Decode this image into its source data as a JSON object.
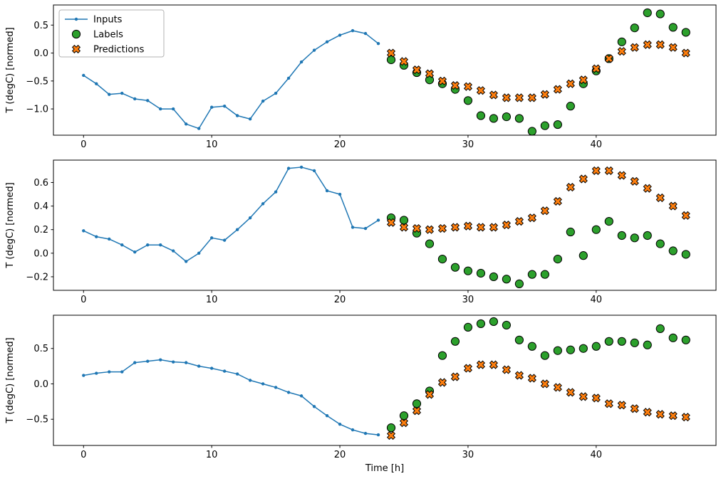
{
  "figure": {
    "xlabel": "Time [h]",
    "legend": {
      "items": [
        {
          "label": "Inputs",
          "marker": "line-dot",
          "color": "#1f77b4"
        },
        {
          "label": "Labels",
          "marker": "circle",
          "color": "#2ca02c"
        },
        {
          "label": "Predictions",
          "marker": "x",
          "color": "#ff7f0e"
        }
      ],
      "position": "upper-left-subplot-1"
    },
    "colors": {
      "inputs": "#1f77b4",
      "labels": "#2ca02c",
      "predictions": "#ff7f0e",
      "marker_edge": "#000000",
      "legend_border": "#b3b3b3",
      "background": "#ffffff"
    }
  },
  "chart_data": [
    {
      "type": "line+scatter",
      "title": "",
      "xlabel": "",
      "ylabel": "T (degC) [normed]",
      "xlim": [
        -2.35,
        49.35
      ],
      "ylim": [
        -1.47,
        0.86
      ],
      "xticks": [
        0,
        10,
        20,
        30,
        40
      ],
      "yticks": [
        0.5,
        0.0,
        -0.5,
        -1.0
      ],
      "grid": false,
      "series": [
        {
          "name": "Inputs",
          "marker": "line-dot",
          "x": [
            0,
            1,
            2,
            3,
            4,
            5,
            6,
            7,
            8,
            9,
            10,
            11,
            12,
            13,
            14,
            15,
            16,
            17,
            18,
            19,
            20,
            21,
            22,
            23
          ],
          "y": [
            -0.4,
            -0.55,
            -0.74,
            -0.72,
            -0.82,
            -0.85,
            -1.0,
            -1.0,
            -1.27,
            -1.35,
            -0.97,
            -0.95,
            -1.12,
            -1.18,
            -0.86,
            -0.72,
            -0.45,
            -0.16,
            0.05,
            0.2,
            0.32,
            0.4,
            0.35,
            0.17
          ]
        },
        {
          "name": "Labels",
          "marker": "circle",
          "x": [
            24,
            25,
            26,
            27,
            28,
            29,
            30,
            31,
            32,
            33,
            34,
            35,
            36,
            37,
            38,
            39,
            40,
            41,
            42,
            43,
            44,
            45,
            46,
            47
          ],
          "y": [
            -0.12,
            -0.22,
            -0.35,
            -0.48,
            -0.55,
            -0.65,
            -0.85,
            -1.12,
            -1.17,
            -1.14,
            -1.17,
            -1.4,
            -1.3,
            -1.28,
            -0.95,
            -0.55,
            -0.32,
            -0.1,
            0.2,
            0.45,
            0.72,
            0.7,
            0.46,
            0.37
          ]
        },
        {
          "name": "Predictions",
          "marker": "x",
          "x": [
            24,
            25,
            26,
            27,
            28,
            29,
            30,
            31,
            32,
            33,
            34,
            35,
            36,
            37,
            38,
            39,
            40,
            41,
            42,
            43,
            44,
            45,
            46,
            47
          ],
          "y": [
            0.0,
            -0.15,
            -0.3,
            -0.37,
            -0.5,
            -0.58,
            -0.6,
            -0.67,
            -0.75,
            -0.8,
            -0.8,
            -0.8,
            -0.74,
            -0.65,
            -0.55,
            -0.48,
            -0.28,
            -0.1,
            0.03,
            0.1,
            0.15,
            0.15,
            0.1,
            0.0
          ]
        }
      ]
    },
    {
      "type": "line+scatter",
      "title": "",
      "xlabel": "",
      "ylabel": "T (degC) [normed]",
      "xlim": [
        -2.35,
        49.35
      ],
      "ylim": [
        -0.315,
        0.79
      ],
      "xticks": [
        0,
        10,
        20,
        30,
        40
      ],
      "yticks": [
        0.6,
        0.4,
        0.2,
        0.0,
        -0.2
      ],
      "grid": false,
      "series": [
        {
          "name": "Inputs",
          "marker": "line-dot",
          "x": [
            0,
            1,
            2,
            3,
            4,
            5,
            6,
            7,
            8,
            9,
            10,
            11,
            12,
            13,
            14,
            15,
            16,
            17,
            18,
            19,
            20,
            21,
            22,
            23
          ],
          "y": [
            0.19,
            0.14,
            0.12,
            0.07,
            0.01,
            0.07,
            0.07,
            0.02,
            -0.07,
            0.0,
            0.13,
            0.11,
            0.2,
            0.3,
            0.42,
            0.52,
            0.72,
            0.73,
            0.7,
            0.53,
            0.5,
            0.22,
            0.21,
            0.28
          ]
        },
        {
          "name": "Labels",
          "marker": "circle",
          "x": [
            24,
            25,
            26,
            27,
            28,
            29,
            30,
            31,
            32,
            33,
            34,
            35,
            36,
            37,
            38,
            39,
            40,
            41,
            42,
            43,
            44,
            45,
            46,
            47
          ],
          "y": [
            0.3,
            0.28,
            0.17,
            0.08,
            -0.05,
            -0.12,
            -0.15,
            -0.17,
            -0.2,
            -0.22,
            -0.26,
            -0.18,
            -0.18,
            -0.05,
            0.18,
            -0.02,
            0.2,
            0.27,
            0.15,
            0.13,
            0.15,
            0.08,
            0.02,
            -0.01
          ]
        },
        {
          "name": "Predictions",
          "marker": "x",
          "x": [
            24,
            25,
            26,
            27,
            28,
            29,
            30,
            31,
            32,
            33,
            34,
            35,
            36,
            37,
            38,
            39,
            40,
            41,
            42,
            43,
            44,
            45,
            46,
            47
          ],
          "y": [
            0.26,
            0.22,
            0.21,
            0.2,
            0.21,
            0.22,
            0.23,
            0.22,
            0.22,
            0.24,
            0.27,
            0.3,
            0.36,
            0.44,
            0.56,
            0.63,
            0.7,
            0.7,
            0.66,
            0.61,
            0.55,
            0.47,
            0.4,
            0.32
          ]
        }
      ]
    },
    {
      "type": "line+scatter",
      "title": "",
      "xlabel": "Time [h]",
      "ylabel": "T (degC) [normed]",
      "xlim": [
        -2.35,
        49.35
      ],
      "ylim": [
        -0.87,
        0.97
      ],
      "xticks": [
        0,
        10,
        20,
        30,
        40
      ],
      "yticks": [
        0.5,
        0.0,
        -0.5
      ],
      "grid": false,
      "series": [
        {
          "name": "Inputs",
          "marker": "line-dot",
          "x": [
            0,
            1,
            2,
            3,
            4,
            5,
            6,
            7,
            8,
            9,
            10,
            11,
            12,
            13,
            14,
            15,
            16,
            17,
            18,
            19,
            20,
            21,
            22,
            23
          ],
          "y": [
            0.12,
            0.15,
            0.17,
            0.17,
            0.3,
            0.32,
            0.34,
            0.31,
            0.3,
            0.25,
            0.22,
            0.18,
            0.14,
            0.05,
            0.0,
            -0.05,
            -0.12,
            -0.17,
            -0.32,
            -0.45,
            -0.57,
            -0.65,
            -0.7,
            -0.72
          ]
        },
        {
          "name": "Labels",
          "marker": "circle",
          "x": [
            24,
            25,
            26,
            27,
            28,
            29,
            30,
            31,
            32,
            33,
            34,
            35,
            36,
            37,
            38,
            39,
            40,
            41,
            42,
            43,
            44,
            45,
            46,
            47
          ],
          "y": [
            -0.62,
            -0.45,
            -0.28,
            -0.1,
            0.4,
            0.6,
            0.8,
            0.85,
            0.88,
            0.83,
            0.62,
            0.53,
            0.4,
            0.47,
            0.48,
            0.5,
            0.53,
            0.6,
            0.6,
            0.58,
            0.55,
            0.78,
            0.65,
            0.62
          ]
        },
        {
          "name": "Predictions",
          "marker": "x",
          "x": [
            24,
            25,
            26,
            27,
            28,
            29,
            30,
            31,
            32,
            33,
            34,
            35,
            36,
            37,
            38,
            39,
            40,
            41,
            42,
            43,
            44,
            45,
            46,
            47
          ],
          "y": [
            -0.73,
            -0.55,
            -0.38,
            -0.15,
            0.02,
            0.1,
            0.22,
            0.27,
            0.27,
            0.2,
            0.12,
            0.08,
            0.0,
            -0.05,
            -0.12,
            -0.18,
            -0.2,
            -0.28,
            -0.3,
            -0.35,
            -0.4,
            -0.43,
            -0.45,
            -0.47
          ]
        }
      ]
    }
  ]
}
